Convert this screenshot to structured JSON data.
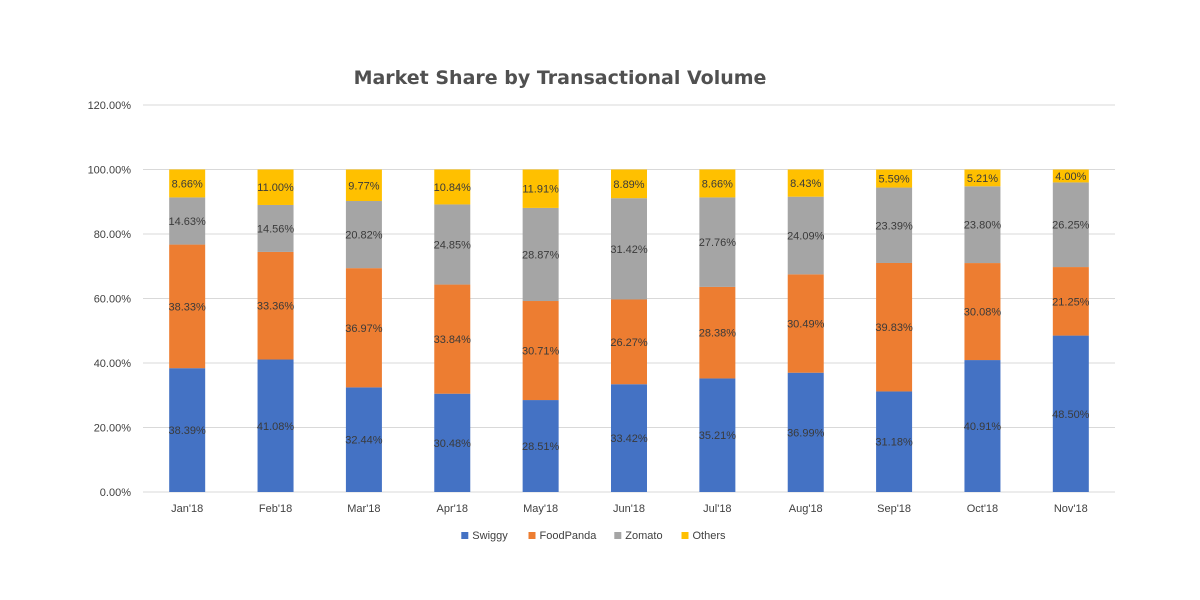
{
  "chart_data": {
    "type": "bar",
    "stacked": true,
    "title": "Market Share by Transactional Volume",
    "xlabel": "",
    "ylabel": "",
    "ylim": [
      0,
      1.2
    ],
    "yticks": [
      "0.00%",
      "20.00%",
      "40.00%",
      "60.00%",
      "80.00%",
      "100.00%",
      "120.00%"
    ],
    "grid": true,
    "legend_position": "bottom",
    "categories": [
      "Jan'18",
      "Feb'18",
      "Mar'18",
      "Apr'18",
      "May'18",
      "Jun'18",
      "Jul'18",
      "Aug'18",
      "Sep'18",
      "Oct'18",
      "Nov'18"
    ],
    "series": [
      {
        "name": "Swiggy",
        "color": "#4472C4",
        "values": [
          0.3839,
          0.4108,
          0.3244,
          0.3048,
          0.2851,
          0.3342,
          0.3521,
          0.3699,
          0.3118,
          0.4091,
          0.485
        ],
        "labels": [
          "38.39%",
          "41.08%",
          "32.44%",
          "30.48%",
          "28.51%",
          "33.42%",
          "35.21%",
          "36.99%",
          "31.18%",
          "40.91%",
          "48.50%"
        ]
      },
      {
        "name": "FoodPanda",
        "color": "#ED7D31",
        "values": [
          0.3833,
          0.3336,
          0.3697,
          0.3384,
          0.3071,
          0.2627,
          0.2838,
          0.3049,
          0.3983,
          0.3008,
          0.2125
        ],
        "labels": [
          "38.33%",
          "33.36%",
          "36.97%",
          "33.84%",
          "30.71%",
          "26.27%",
          "28.38%",
          "30.49%",
          "39.83%",
          "30.08%",
          "21.25%"
        ]
      },
      {
        "name": "Zomato",
        "color": "#A5A5A5",
        "values": [
          0.1463,
          0.1456,
          0.2082,
          0.2485,
          0.2887,
          0.3142,
          0.2776,
          0.2409,
          0.2339,
          0.238,
          0.2625
        ],
        "labels": [
          "14.63%",
          "14.56%",
          "20.82%",
          "24.85%",
          "28.87%",
          "31.42%",
          "27.76%",
          "24.09%",
          "23.39%",
          "23.80%",
          "26.25%"
        ]
      },
      {
        "name": "Others",
        "color": "#FFC000",
        "values": [
          0.0866,
          0.11,
          0.0977,
          0.1084,
          0.1191,
          0.0889,
          0.0866,
          0.0843,
          0.0559,
          0.0521,
          0.04
        ],
        "labels": [
          "8.66%",
          "11.00%",
          "9.77%",
          "10.84%",
          "11.91%",
          "8.89%",
          "8.66%",
          "8.43%",
          "5.59%",
          "5.21%",
          "4.00%"
        ]
      }
    ]
  }
}
